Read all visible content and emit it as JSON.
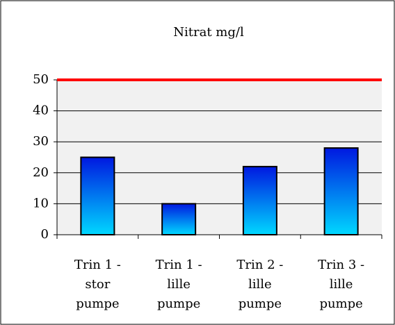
{
  "chart_data": {
    "type": "bar",
    "title": "Nitrat mg/l",
    "categories": [
      [
        "Trin 1 -",
        "stor",
        "pumpe"
      ],
      [
        "Trin 1 -",
        "lille",
        "pumpe"
      ],
      [
        "Trin 2 -",
        "lille",
        "pumpe"
      ],
      [
        "Trin 3 -",
        "lille",
        "pumpe"
      ]
    ],
    "values": [
      25,
      10,
      22,
      28
    ],
    "ylim": [
      0,
      50
    ],
    "yticks": [
      0,
      10,
      20,
      30,
      40,
      50
    ],
    "grid": true,
    "threshold": 50,
    "threshold_color": "#ff0000"
  }
}
